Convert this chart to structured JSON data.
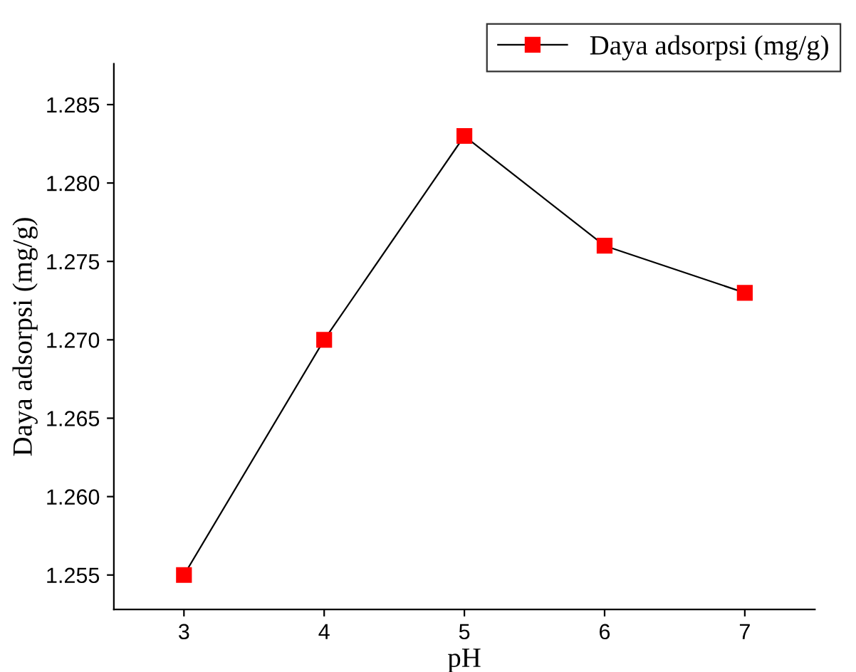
{
  "chart_data": {
    "type": "line",
    "xlabel": "pH",
    "ylabel": "Daya adsorpsi (mg/g)",
    "x": [
      3,
      4,
      5,
      6,
      7
    ],
    "series": [
      {
        "name": "Daya adsorpsi (mg/g)",
        "color": "#ff0000",
        "values": [
          1.255,
          1.27,
          1.283,
          1.276,
          1.273
        ]
      }
    ],
    "xlim": [
      2.5,
      7.5
    ],
    "xticks": [
      3,
      4,
      5,
      6,
      7
    ],
    "ylim": [
      1.2528,
      1.2876
    ],
    "yticks": [
      {
        "value": 1.255,
        "label": "1.255"
      },
      {
        "value": 1.26,
        "label": "1.260"
      },
      {
        "value": 1.265,
        "label": "1.265"
      },
      {
        "value": 1.27,
        "label": "1.270"
      },
      {
        "value": 1.275,
        "label": "1.275"
      },
      {
        "value": 1.28,
        "label": "1.280"
      },
      {
        "value": 1.285,
        "label": "1.285"
      }
    ],
    "marker": "square",
    "line_style": "solid",
    "grid": false,
    "legend": "top right"
  }
}
